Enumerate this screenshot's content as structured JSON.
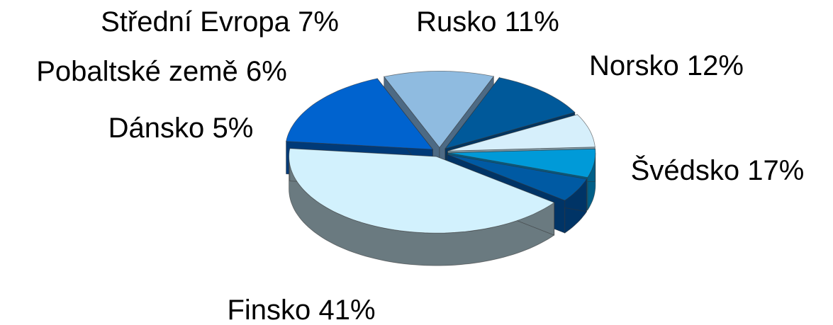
{
  "chart_data": {
    "type": "pie",
    "categories": [
      "Finsko",
      "Švédsko",
      "Norsko",
      "Rusko",
      "Střední Evropa",
      "Pobaltské země",
      "Dánsko"
    ],
    "values": [
      41,
      17,
      12,
      11,
      7,
      6,
      5
    ],
    "value_labels": [
      "41%",
      "17%",
      "12%",
      "11%",
      "7%",
      "6%",
      "5%"
    ],
    "colors": [
      "#d2f1fd",
      "#0063cf",
      "#8fbbe0",
      "#00599a",
      "#d6effb",
      "#009ad8",
      "#005aa3"
    ],
    "side_colors": [
      "#6a7a80",
      "#003a78",
      "#4d6a84",
      "#003560",
      "#7f9aa6",
      "#005f88",
      "#003466"
    ]
  }
}
